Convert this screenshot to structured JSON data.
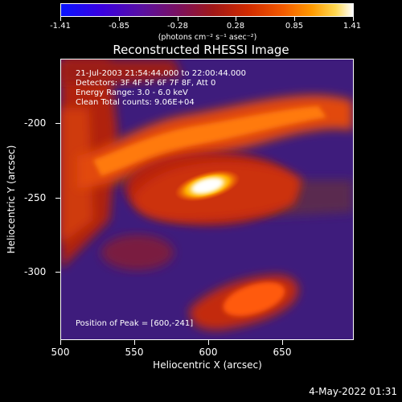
{
  "colorbar": {
    "labels": [
      "-1.41",
      "-0.85",
      "-0.28",
      "0.28",
      "0.85",
      "1.41"
    ],
    "units": "(photons cm⁻² s⁻¹ asec⁻²)",
    "colors": [
      "#0a14ff",
      "#5a10a0",
      "#a01818",
      "#f25a00",
      "#ffd850",
      "#ffffff"
    ]
  },
  "title": "Reconstructed RHESSI Image",
  "info": {
    "line1": "21-Jul-2003 21:54:44.000 to 22:00:44.000",
    "line2": "Detectors: 3F 4F 5F 6F 7F 8F, Att 0",
    "line3": "Energy Range: 3.0 - 6.0 keV",
    "line4": "Clean     Total counts: 9.06E+04"
  },
  "peak": "Position of Peak = [600,-241]",
  "axes": {
    "xlabel": "Heliocentric X (arcsec)",
    "ylabel": "Heliocentric Y (arcsec)",
    "xticks": [
      "500",
      "550",
      "600",
      "650"
    ],
    "yticks": [
      "-200",
      "-250",
      "-300"
    ],
    "xrange": [
      500,
      690
    ],
    "yrange": [
      -345,
      -165
    ]
  },
  "footer_date": "4-May-2022 01:31"
}
